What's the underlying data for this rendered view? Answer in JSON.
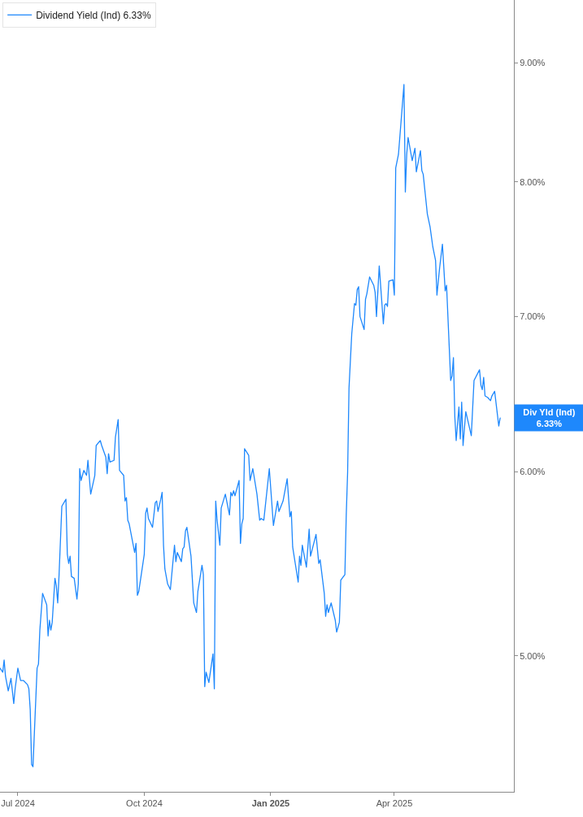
{
  "chart_data": {
    "type": "line",
    "log": true,
    "legend": "top left",
    "x": [
      "2024-06-18",
      "2024-06-20",
      "2024-06-21",
      "2024-06-22",
      "2024-06-24",
      "2024-06-26",
      "2024-06-28",
      "2024-06-29",
      "2024-07-01",
      "2024-07-03",
      "2024-07-05",
      "2024-07-08",
      "2024-07-09",
      "2024-07-10",
      "2024-07-11",
      "2024-07-12",
      "2024-07-13",
      "2024-07-15",
      "2024-07-16",
      "2024-07-17",
      "2024-07-19",
      "2024-07-22",
      "2024-07-23",
      "2024-07-24",
      "2024-07-25",
      "2024-07-26",
      "2024-07-28",
      "2024-07-29",
      "2024-07-30",
      "2024-07-31",
      "2024-08-02",
      "2024-08-05",
      "2024-08-06",
      "2024-08-07",
      "2024-08-08",
      "2024-08-09",
      "2024-08-11",
      "2024-08-13",
      "2024-08-14",
      "2024-08-15",
      "2024-08-16",
      "2024-08-18",
      "2024-08-20",
      "2024-08-21",
      "2024-08-23",
      "2024-08-26",
      "2024-08-27",
      "2024-08-30",
      "2024-08-31",
      "2024-09-03",
      "2024-09-04",
      "2024-09-05",
      "2024-09-06",
      "2024-09-09",
      "2024-09-10",
      "2024-09-12",
      "2024-09-13",
      "2024-09-16",
      "2024-09-17",
      "2024-09-18",
      "2024-09-19",
      "2024-09-20",
      "2024-09-24",
      "2024-09-25",
      "2024-09-26",
      "2024-09-27",
      "2024-10-01",
      "2024-10-02",
      "2024-10-03",
      "2024-10-04",
      "2024-10-07",
      "2024-10-09",
      "2024-10-10",
      "2024-10-11",
      "2024-10-13",
      "2024-10-14",
      "2024-10-15",
      "2024-10-16",
      "2024-10-18",
      "2024-10-20",
      "2024-10-22",
      "2024-10-23",
      "2024-10-24",
      "2024-10-25",
      "2024-10-28",
      "2024-10-29",
      "2024-10-30",
      "2024-10-31",
      "2024-11-01",
      "2024-11-04",
      "2024-11-06",
      "2024-11-08",
      "2024-11-09",
      "2024-11-12",
      "2024-11-13",
      "2024-11-14",
      "2024-11-15",
      "2024-11-17",
      "2024-11-20",
      "2024-11-21",
      "2024-11-22",
      "2024-11-23",
      "2024-11-25",
      "2024-11-26",
      "2024-11-29",
      "2024-12-02",
      "2024-12-03",
      "2024-12-04",
      "2024-12-05",
      "2024-12-06",
      "2024-12-09",
      "2024-12-10",
      "2024-12-11",
      "2024-12-12",
      "2024-12-13",
      "2024-12-16",
      "2024-12-17",
      "2024-12-19",
      "2024-12-22",
      "2024-12-24",
      "2024-12-25",
      "2024-12-27",
      "2024-12-31",
      "2025-01-03",
      "2025-01-06",
      "2025-01-07",
      "2025-01-10",
      "2025-01-13",
      "2025-01-15",
      "2025-01-16",
      "2025-01-17",
      "2025-01-21",
      "2025-01-22",
      "2025-01-23",
      "2025-01-24",
      "2025-01-27",
      "2025-01-29",
      "2025-01-30",
      "2025-02-03",
      "2025-02-05",
      "2025-02-06",
      "2025-02-09",
      "2025-02-10",
      "2025-02-11",
      "2025-02-12",
      "2025-02-14",
      "2025-02-17",
      "2025-02-18",
      "2025-02-20",
      "2025-02-21",
      "2025-02-24",
      "2025-02-25",
      "2025-02-26",
      "2025-02-27",
      "2025-02-28",
      "2025-03-01",
      "2025-03-03",
      "2025-03-04",
      "2025-03-05",
      "2025-03-06",
      "2025-03-07",
      "2025-03-10",
      "2025-03-11",
      "2025-03-12",
      "2025-03-14",
      "2025-03-17",
      "2025-03-18",
      "2025-03-19",
      "2025-03-21",
      "2025-03-24",
      "2025-03-25",
      "2025-03-26",
      "2025-03-27",
      "2025-03-28",
      "2025-03-31",
      "2025-04-01",
      "2025-04-02",
      "2025-04-04",
      "2025-04-06",
      "2025-04-08",
      "2025-04-09",
      "2025-04-10",
      "2025-04-11",
      "2025-04-14",
      "2025-04-16",
      "2025-04-17",
      "2025-04-20",
      "2025-04-21",
      "2025-04-22",
      "2025-04-25",
      "2025-04-27",
      "2025-04-29",
      "2025-05-01",
      "2025-05-02",
      "2025-05-04",
      "2025-05-06",
      "2025-05-08",
      "2025-05-09",
      "2025-05-12",
      "2025-05-13",
      "2025-05-14",
      "2025-05-15",
      "2025-05-16",
      "2025-05-18",
      "2025-05-19",
      "2025-05-20",
      "2025-05-21",
      "2025-05-23",
      "2025-05-27",
      "2025-05-29",
      "2025-06-02",
      "2025-06-03",
      "2025-06-04",
      "2025-06-05",
      "2025-06-06",
      "2025-06-08",
      "2025-06-10",
      "2025-06-11",
      "2025-06-13",
      "2025-06-16",
      "2025-06-17"
    ],
    "series": [
      {
        "name": "Dividend Yield (Ind) 6.33%",
        "color": "#1e88fc",
        "values": [
          4.94,
          4.92,
          4.98,
          4.9,
          4.83,
          4.89,
          4.77,
          4.84,
          4.94,
          4.88,
          4.88,
          4.86,
          4.84,
          4.74,
          4.49,
          4.48,
          4.63,
          4.94,
          4.96,
          5.13,
          5.32,
          5.26,
          5.1,
          5.18,
          5.13,
          5.17,
          5.4,
          5.36,
          5.27,
          5.42,
          5.8,
          5.84,
          5.53,
          5.48,
          5.52,
          5.41,
          5.4,
          5.29,
          5.37,
          6.02,
          5.95,
          6.01,
          5.98,
          6.07,
          5.87,
          5.98,
          6.16,
          6.19,
          6.16,
          6.09,
          5.99,
          6.11,
          6.06,
          6.07,
          6.21,
          6.32,
          6.01,
          5.98,
          5.83,
          5.85,
          5.72,
          5.7,
          5.54,
          5.59,
          5.31,
          5.33,
          5.53,
          5.76,
          5.79,
          5.73,
          5.68,
          5.82,
          5.83,
          5.77,
          5.84,
          5.88,
          5.58,
          5.45,
          5.37,
          5.34,
          5.5,
          5.58,
          5.49,
          5.54,
          5.49,
          5.56,
          5.57,
          5.66,
          5.68,
          5.52,
          5.27,
          5.22,
          5.33,
          5.47,
          5.42,
          4.85,
          4.92,
          4.87,
          5.01,
          4.84,
          5.83,
          5.72,
          5.58,
          5.79,
          5.87,
          5.75,
          5.88,
          5.86,
          5.89,
          5.86,
          5.95,
          5.59,
          5.7,
          5.73,
          6.14,
          6.1,
          5.95,
          6.02,
          5.87,
          5.72,
          5.73,
          5.72,
          6.02,
          5.69,
          5.83,
          5.77,
          5.83,
          5.96,
          5.74,
          5.77,
          5.57,
          5.38,
          5.52,
          5.47,
          5.58,
          5.46,
          5.67,
          5.52,
          5.64,
          5.48,
          5.5,
          5.32,
          5.2,
          5.26,
          5.22,
          5.27,
          5.18,
          5.12,
          5.17,
          5.39,
          5.42,
          5.75,
          6.0,
          6.52,
          6.7,
          6.88,
          7.09,
          7.08,
          7.19,
          7.21,
          7.0,
          6.91,
          7.12,
          7.16,
          7.28,
          7.22,
          7.17,
          7.0,
          7.36,
          6.95,
          7.08,
          7.09,
          7.07,
          7.25,
          7.26,
          7.15,
          8.11,
          8.22,
          8.51,
          8.81,
          7.92,
          8.22,
          8.36,
          8.17,
          8.27,
          8.08,
          8.25,
          8.09,
          8.06,
          7.75,
          7.65,
          7.5,
          7.4,
          7.15,
          7.35,
          7.52,
          7.18,
          7.22,
          6.57,
          6.6,
          6.72,
          6.34,
          6.19,
          6.4,
          6.2,
          6.43,
          6.16,
          6.37,
          6.22,
          6.57,
          6.64,
          6.54,
          6.51,
          6.59,
          6.47,
          6.46,
          6.44,
          6.47,
          6.5,
          6.28,
          6.33
        ]
      }
    ],
    "xlim": [
      "2024-06-18",
      "2025-06-27"
    ],
    "xticks": [
      {
        "value": "2024-07-01",
        "label": "Jul 2024"
      },
      {
        "value": "2024-10-01",
        "label": "Oct 2024"
      },
      {
        "value": "2025-01-01",
        "label": "Jan 2025"
      },
      {
        "value": "2025-04-01",
        "label": "Apr 2025"
      }
    ],
    "ylim": [
      4.37,
      9.58
    ],
    "yticks": [
      {
        "value": 5,
        "label": "5.00%"
      },
      {
        "value": 6,
        "label": "6.00%"
      },
      {
        "value": 7,
        "label": "7.00%"
      },
      {
        "value": 8,
        "label": "8.00%"
      },
      {
        "value": 9,
        "label": "9.00%"
      }
    ],
    "annotations": [
      "Div Yld (Ind)\n6.33%"
    ]
  }
}
